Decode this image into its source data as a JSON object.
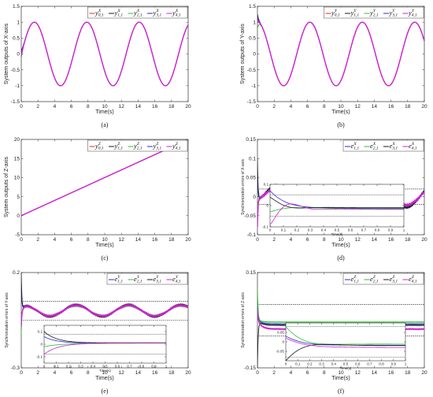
{
  "chart_data": [
    {
      "id": "a",
      "type": "line",
      "caption": "(a)",
      "xlabel": "Time(s)",
      "ylabel": "System outputs of X-axis",
      "xlim": [
        0,
        20
      ],
      "ylim": [
        -1.5,
        1.5
      ],
      "xticks": [
        "0",
        "2",
        "4",
        "6",
        "8",
        "10",
        "12",
        "14",
        "16",
        "18",
        "20"
      ],
      "yticks": [
        "-1.5",
        "-1",
        "-0.5",
        "0",
        "0.5",
        "1",
        "1.5"
      ],
      "legend_position": "top-right",
      "series": [
        {
          "name": "y0,1X",
          "color": "#e8262a"
        },
        {
          "name": "y1,1X",
          "color": "#1a1a1a"
        },
        {
          "name": "y2,1X",
          "color": "#2cc02c"
        },
        {
          "name": "y3,1X",
          "color": "#2b2bd6"
        },
        {
          "name": "y4,1X",
          "color": "#d021d0"
        }
      ],
      "formula": "y = sin(t), t from 0 to 20"
    },
    {
      "id": "b",
      "type": "line",
      "caption": "(b)",
      "xlabel": "Time(s)",
      "ylabel": "System outputs of Y-axis",
      "xlim": [
        0,
        20
      ],
      "ylim": [
        -1.5,
        1.5
      ],
      "xticks": [
        "0",
        "2",
        "4",
        "6",
        "8",
        "10",
        "12",
        "14",
        "16",
        "18",
        "20"
      ],
      "yticks": [
        "-1.5",
        "-1",
        "-0.5",
        "0",
        "0.5",
        "1",
        "1.5"
      ],
      "legend_position": "top-right",
      "series": [
        {
          "name": "y0,1Y",
          "color": "#e8262a"
        },
        {
          "name": "y1,1Y",
          "color": "#1a1a1a"
        },
        {
          "name": "y2,1Y",
          "color": "#2cc02c"
        },
        {
          "name": "y3,1Y",
          "color": "#2b2bd6"
        },
        {
          "name": "y4,1Y",
          "color": "#d021d0"
        }
      ],
      "formula": "y = cos(t), t from 0 to 20"
    },
    {
      "id": "c",
      "type": "line",
      "caption": "(c)",
      "xlabel": "Time(s)",
      "ylabel": "System outputs of Z-axis",
      "xlim": [
        0,
        20
      ],
      "ylim": [
        -5,
        20
      ],
      "xticks": [
        "0",
        "2",
        "4",
        "6",
        "8",
        "10",
        "12",
        "14",
        "16",
        "18",
        "20"
      ],
      "yticks": [
        "-5",
        "0",
        "5",
        "10",
        "15",
        "20"
      ],
      "legend_position": "top-right",
      "series": [
        {
          "name": "y0,1Z",
          "color": "#e8262a"
        },
        {
          "name": "y1,1Z",
          "color": "#1a1a1a"
        },
        {
          "name": "y2,1Z",
          "color": "#2cc02c"
        },
        {
          "name": "y3,1Z",
          "color": "#2b2bd6"
        },
        {
          "name": "y4,1Z",
          "color": "#d021d0"
        }
      ],
      "formula": "y = t, t from 0 to 20"
    },
    {
      "id": "d",
      "type": "line",
      "caption": "(d)",
      "xlabel": "Time(s)",
      "ylabel": "Synchronization errors of X-axis",
      "xlim": [
        0,
        20
      ],
      "ylim": [
        -0.1,
        0.15
      ],
      "xticks": [
        "0",
        "2",
        "4",
        "6",
        "8",
        "10",
        "12",
        "14",
        "16",
        "18",
        "20"
      ],
      "yticks": [
        "-0.1",
        "-0.05",
        "0",
        "0.05",
        "0.1",
        "0.15"
      ],
      "bounds": [
        0.02,
        -0.02
      ],
      "legend_position": "top-right",
      "series": [
        {
          "name": "e1,1X",
          "color": "#2b2bd6"
        },
        {
          "name": "e2,1X",
          "color": "#2cc02c"
        },
        {
          "name": "e3,1X",
          "color": "#1a1a1a"
        },
        {
          "name": "e4,1X",
          "color": "#d021d0"
        }
      ],
      "inset": {
        "xlabel": "Time(s)",
        "xlim": [
          0,
          1
        ],
        "ylim": [
          -0.1,
          0.1
        ],
        "xticks": [
          "0",
          "0.1",
          "0.2",
          "0.3",
          "0.4",
          "0.5",
          "0.6",
          "0.7",
          "0.8",
          "0.9",
          "1"
        ],
        "yticks": [
          "-0.1",
          "0",
          "0.1"
        ]
      }
    },
    {
      "id": "e",
      "type": "line",
      "caption": "(e)",
      "xlabel": "Time(s)",
      "ylabel": "Synchronization errors of Y-axis",
      "xlim": [
        0,
        20
      ],
      "ylim": [
        -0.3,
        0.2
      ],
      "xticks": [
        "0",
        "2",
        "4",
        "6",
        "8",
        "10",
        "12",
        "14",
        "16",
        "18",
        "20"
      ],
      "yticks": [
        "-0.3",
        "0.2"
      ],
      "bounds": [
        0.05,
        -0.05
      ],
      "legend_position": "top-right",
      "series": [
        {
          "name": "e1,1Y",
          "color": "#2b2bd6"
        },
        {
          "name": "e2,1Y",
          "color": "#2cc02c"
        },
        {
          "name": "e3,1Y",
          "color": "#1a1a1a"
        },
        {
          "name": "e4,1Y",
          "color": "#d021d0"
        }
      ],
      "inset": {
        "xlabel": "Time(s)",
        "xlim": [
          0,
          1
        ],
        "ylim": [
          -0.15,
          0.15
        ],
        "xticks": [
          "0",
          "0.1",
          "0.2",
          "0.3",
          "0.4",
          "0.5",
          "0.6",
          "0.7",
          "0.8",
          "0.9",
          "1"
        ],
        "yticks": [
          "-0.1",
          "0",
          "0.1"
        ]
      }
    },
    {
      "id": "f",
      "type": "line",
      "caption": "(f)",
      "xlabel": "Time(s)",
      "ylabel": "Synchronization errors of Z-axis",
      "xlim": [
        0,
        20
      ],
      "ylim": [
        -0.15,
        0.15
      ],
      "xticks": [
        "0",
        "2",
        "4",
        "6",
        "8",
        "10",
        "12",
        "14",
        "16",
        "18",
        "20"
      ],
      "yticks": [
        "-0.15",
        "0.15"
      ],
      "bounds": [
        0.05,
        -0.05
      ],
      "legend_position": "top-right",
      "series": [
        {
          "name": "e1,1Z",
          "color": "#2b2bd6"
        },
        {
          "name": "e2,1Z",
          "color": "#2cc02c"
        },
        {
          "name": "e3,1Z",
          "color": "#1a1a1a"
        },
        {
          "name": "e4,1Z",
          "color": "#d021d0"
        }
      ],
      "inset": {
        "xlabel": "Time(s)",
        "xlim": [
          0,
          1
        ],
        "ylim": [
          -0.1,
          0.1
        ],
        "xticks": [
          "0",
          "0.1",
          "0.2",
          "0.3",
          "0.4",
          "0.5",
          "0.6",
          "0.7",
          "0.8",
          "0.9",
          "1"
        ],
        "yticks": [
          "-0.05",
          "0",
          "0.05"
        ]
      }
    }
  ]
}
